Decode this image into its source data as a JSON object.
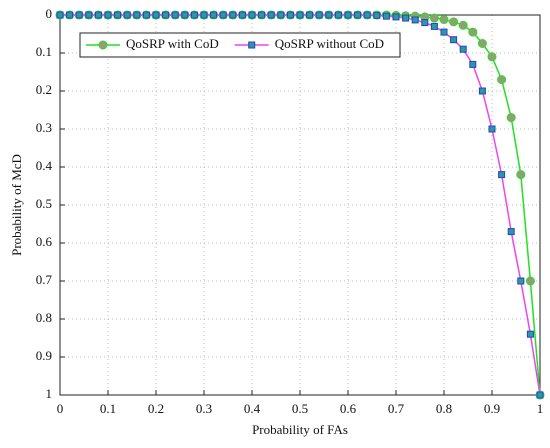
{
  "chart_data": {
    "type": "line",
    "x_label": "Probability of FAs",
    "y_label": "Probability of McD",
    "x": [
      0,
      0.02,
      0.04,
      0.06,
      0.08,
      0.1,
      0.12,
      0.14,
      0.16,
      0.18,
      0.2,
      0.22,
      0.24,
      0.26,
      0.28,
      0.3,
      0.32,
      0.34,
      0.36,
      0.38,
      0.4,
      0.42,
      0.44,
      0.46,
      0.48,
      0.5,
      0.52,
      0.54,
      0.56,
      0.58,
      0.6,
      0.62,
      0.64,
      0.66,
      0.68,
      0.7,
      0.72,
      0.74,
      0.76,
      0.78,
      0.8,
      0.82,
      0.84,
      0.86,
      0.88,
      0.9,
      0.92,
      0.94,
      0.96,
      0.98,
      1
    ],
    "series": [
      {
        "name": "QoSRP with CoD",
        "color": "#22e022",
        "marker": "circle",
        "marker_color": "#9a9a7a",
        "values": [
          0,
          0,
          0,
          0,
          0,
          0,
          0,
          0,
          0,
          0,
          0,
          0,
          0,
          0,
          0,
          0,
          0,
          0,
          0,
          0,
          0,
          0,
          0,
          0,
          0,
          0,
          0,
          0,
          0,
          0,
          0,
          0,
          0,
          0,
          0,
          0.001,
          0.002,
          0.003,
          0.005,
          0.008,
          0.012,
          0.018,
          0.027,
          0.045,
          0.075,
          0.11,
          0.17,
          0.27,
          0.42,
          0.7,
          1
        ]
      },
      {
        "name": "QoSRP without CoD",
        "color": "#ee44ee",
        "marker": "square",
        "marker_color": "#2a9a9a",
        "values": [
          0,
          0,
          0,
          0,
          0,
          0,
          0,
          0,
          0,
          0,
          0,
          0,
          0,
          0,
          0,
          0,
          0,
          0,
          0,
          0,
          0,
          0,
          0,
          0,
          0,
          0,
          0,
          0,
          0,
          0,
          0,
          0,
          0,
          0.001,
          0.003,
          0.005,
          0.008,
          0.013,
          0.02,
          0.03,
          0.045,
          0.065,
          0.09,
          0.13,
          0.2,
          0.3,
          0.42,
          0.57,
          0.7,
          0.84,
          1
        ]
      }
    ],
    "xlim": [
      0,
      1
    ],
    "xticks": [
      0,
      0.1,
      0.2,
      0.3,
      0.4,
      0.5,
      0.6,
      0.7,
      0.8,
      0.9,
      1
    ],
    "ylim": [
      0,
      1
    ],
    "yticks": [
      0,
      0.1,
      0.2,
      0.3,
      0.4,
      0.5,
      0.6,
      0.7,
      0.8,
      0.9,
      1
    ],
    "y_inverted": true,
    "grid": true,
    "legend": "upper left"
  }
}
